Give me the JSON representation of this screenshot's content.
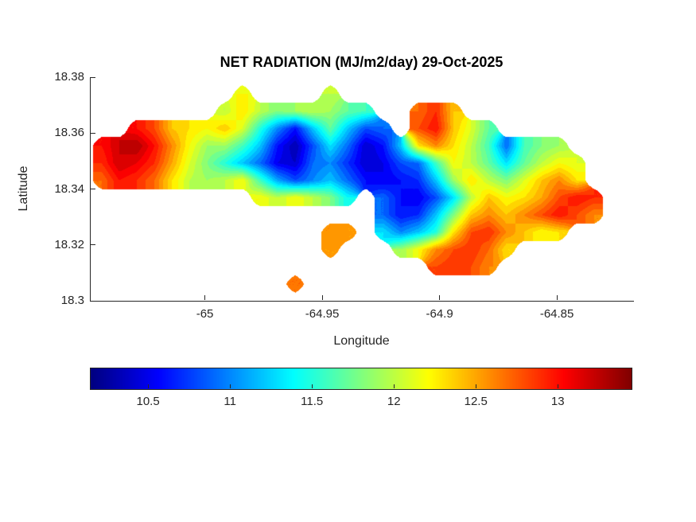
{
  "chart_data": {
    "type": "heatmap",
    "title": "NET RADIATION (MJ/m2/day) 29-Oct-2025",
    "xlabel": "Longitude",
    "ylabel": "Latitude",
    "xlim": [
      -65.049,
      -64.8175
    ],
    "ylim": [
      18.3,
      18.38
    ],
    "xticks": [
      -65,
      -64.95,
      -64.9,
      -64.85
    ],
    "xtick_labels": [
      "-65",
      "-64.95",
      "-64.9",
      "-64.85"
    ],
    "yticks": [
      18.38,
      18.36,
      18.34,
      18.32,
      18.3
    ],
    "ytick_labels": [
      "18.38",
      "18.36",
      "18.34",
      "18.32",
      "18.3"
    ],
    "colormap": "jet",
    "clim": [
      10.15,
      13.45
    ],
    "contour_step": 0.1,
    "grid_lines": "off",
    "legend": "none",
    "colorbar": {
      "orientation": "horizontal",
      "ticks": [
        10.5,
        11,
        11.5,
        12,
        12.5,
        13
      ],
      "tick_labels": [
        "10.5",
        "11",
        "11.5",
        "12",
        "12.5",
        "13"
      ]
    },
    "grid": {
      "lon_min": -65.044,
      "lon_max": -64.834,
      "lat_min": 18.306,
      "lat_max": 18.374,
      "note": "net radiation MJ/m2/day, null = sea (no data)",
      "values": [
        [
          null,
          null,
          null,
          null,
          null,
          null,
          null,
          null,
          12.2,
          null,
          null,
          null,
          null,
          12.0,
          null,
          null,
          null,
          null,
          null,
          null,
          null,
          null,
          null,
          null,
          null,
          null,
          null,
          null,
          null
        ],
        [
          null,
          null,
          null,
          null,
          null,
          null,
          null,
          12.0,
          12.3,
          12.0,
          11.8,
          11.9,
          12.0,
          11.9,
          11.7,
          11.6,
          null,
          null,
          12.7,
          12.9,
          12.4,
          null,
          null,
          null,
          null,
          null,
          null,
          null,
          null
        ],
        [
          null,
          null,
          13.0,
          12.8,
          12.4,
          12.3,
          12.2,
          12.4,
          12.1,
          11.5,
          11.0,
          10.6,
          11.2,
          11.7,
          11.2,
          10.8,
          10.9,
          null,
          12.8,
          13.0,
          12.4,
          12.1,
          11.7,
          null,
          null,
          null,
          null,
          null,
          null
        ],
        [
          13.0,
          13.2,
          13.3,
          13.0,
          12.6,
          12.2,
          11.9,
          11.9,
          11.6,
          11.2,
          10.6,
          10.3,
          10.8,
          11.3,
          10.9,
          10.4,
          10.6,
          11.2,
          12.3,
          12.6,
          12.3,
          12.0,
          11.6,
          10.9,
          11.6,
          11.8,
          11.9,
          null,
          null
        ],
        [
          12.9,
          13.2,
          13.1,
          12.9,
          12.5,
          12.1,
          11.8,
          11.5,
          11.2,
          10.9,
          10.5,
          10.4,
          10.9,
          11.0,
          10.7,
          10.4,
          10.5,
          10.8,
          10.9,
          11.6,
          12.2,
          12.0,
          11.7,
          11.3,
          11.7,
          12.0,
          12.2,
          12.1,
          null
        ],
        [
          12.7,
          13.0,
          12.9,
          12.7,
          12.3,
          12.0,
          11.9,
          12.0,
          12.2,
          11.6,
          11.1,
          10.8,
          11.0,
          11.2,
          10.9,
          10.6,
          10.5,
          10.6,
          10.7,
          11.2,
          11.9,
          12.3,
          12.0,
          11.8,
          12.1,
          12.4,
          12.6,
          12.3,
          null
        ],
        [
          null,
          null,
          null,
          null,
          null,
          null,
          null,
          null,
          null,
          12.2,
          12.0,
          12.2,
          12.0,
          11.8,
          11.4,
          null,
          10.9,
          10.6,
          10.5,
          10.8,
          11.3,
          12.0,
          12.4,
          12.2,
          12.3,
          12.5,
          12.8,
          13.0,
          12.9
        ],
        [
          null,
          null,
          null,
          null,
          null,
          null,
          null,
          null,
          null,
          null,
          null,
          null,
          null,
          null,
          null,
          null,
          10.9,
          10.6,
          10.7,
          11.2,
          11.8,
          12.4,
          12.6,
          12.4,
          12.6,
          12.8,
          13.0,
          12.8,
          12.6
        ],
        [
          null,
          null,
          null,
          null,
          null,
          null,
          null,
          null,
          null,
          null,
          null,
          null,
          null,
          12.6,
          12.5,
          null,
          11.3,
          11.0,
          11.2,
          11.5,
          12.3,
          12.8,
          12.9,
          12.6,
          12.4,
          12.2,
          12.3,
          null,
          null
        ],
        [
          null,
          null,
          null,
          null,
          null,
          null,
          null,
          null,
          null,
          null,
          null,
          null,
          null,
          12.5,
          null,
          null,
          null,
          11.9,
          12.2,
          12.6,
          12.8,
          12.9,
          12.7,
          12.3,
          null,
          null,
          null,
          null,
          null
        ],
        [
          null,
          null,
          null,
          null,
          null,
          null,
          null,
          null,
          null,
          null,
          null,
          null,
          null,
          null,
          null,
          null,
          null,
          null,
          null,
          12.8,
          12.9,
          12.8,
          12.6,
          null,
          null,
          null,
          null,
          null,
          null
        ],
        [
          null,
          null,
          null,
          null,
          null,
          null,
          null,
          null,
          null,
          null,
          null,
          12.7,
          null,
          null,
          null,
          null,
          null,
          null,
          null,
          null,
          null,
          null,
          null,
          null,
          null,
          null,
          null,
          null,
          null
        ]
      ]
    }
  }
}
